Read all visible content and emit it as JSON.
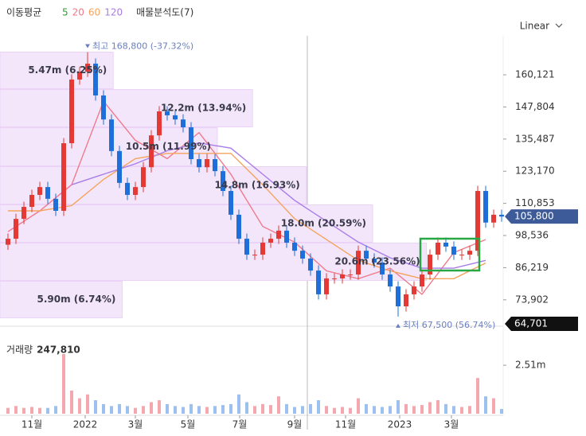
{
  "chart_data": {
    "type": "candlestick",
    "legend_title": "이동평균",
    "profile_title": "매물분석도(7)",
    "scale_mode": "Linear",
    "ylim": [
      63786,
      172010
    ],
    "yticks": [
      {
        "value": 73902,
        "label": "73,902"
      },
      {
        "value": 86219,
        "label": "86,219"
      },
      {
        "value": 98536,
        "label": "98,536"
      },
      {
        "value": 110853,
        "label": "110,853"
      },
      {
        "value": 123170,
        "label": "123,170"
      },
      {
        "value": 135487,
        "label": "135,487"
      },
      {
        "value": 147804,
        "label": "147,804"
      },
      {
        "value": 160121,
        "label": "160,121"
      }
    ],
    "xlim": [
      -1,
      62.2
    ],
    "xticks": [
      {
        "value": 3,
        "label": "11월"
      },
      {
        "value": 9.7,
        "label": "2022"
      },
      {
        "value": 16,
        "label": "3월"
      },
      {
        "value": 22.6,
        "label": "5월"
      },
      {
        "value": 29.1,
        "label": "7월"
      },
      {
        "value": 36,
        "label": "9월"
      },
      {
        "value": 42.4,
        "label": "11월"
      },
      {
        "value": 49.2,
        "label": "2023"
      },
      {
        "value": 55.7,
        "label": "3월"
      }
    ],
    "up_color": "#e53935",
    "down_color": "#1e6fd9",
    "open": [
      95000,
      97300,
      104900,
      109500,
      114100,
      117100,
      112600,
      108000,
      133900,
      158300,
      161300,
      164400,
      152200,
      143000,
      130900,
      118700,
      114100,
      117100,
      124700,
      136900,
      146100,
      144600,
      143000,
      140000,
      127800,
      124700,
      127800,
      123200,
      115600,
      106500,
      97300,
      91200,
      91200,
      95800,
      97300,
      100400,
      95800,
      92700,
      89700,
      85100,
      76000,
      82100,
      82100,
      83600,
      83600,
      92700,
      89700,
      88200,
      83600,
      79000,
      71400,
      76000,
      79000,
      83600,
      91200,
      95800,
      94300,
      91200,
      91200,
      92700,
      115600,
      103500,
      106500
    ],
    "high": [
      99300,
      106900,
      111500,
      116100,
      119100,
      119100,
      114600,
      135900,
      160300,
      163300,
      168800,
      166400,
      154200,
      145000,
      132900,
      120700,
      119100,
      126700,
      138900,
      148100,
      148100,
      146600,
      145000,
      142000,
      129800,
      129800,
      129800,
      125200,
      117600,
      108500,
      99300,
      93200,
      97800,
      99300,
      102400,
      102400,
      97800,
      94700,
      91700,
      87100,
      84100,
      84100,
      85600,
      85600,
      94700,
      94700,
      91700,
      90200,
      85600,
      81000,
      78000,
      81000,
      85600,
      93200,
      97800,
      97800,
      96300,
      93200,
      94700,
      117600,
      117600,
      108500,
      108500
    ],
    "low": [
      93000,
      95300,
      102900,
      107500,
      112100,
      110600,
      106000,
      106000,
      131900,
      156300,
      159300,
      150200,
      141000,
      128900,
      116700,
      112100,
      112100,
      115100,
      122700,
      134900,
      142600,
      141000,
      138000,
      125800,
      122700,
      122700,
      121200,
      113600,
      104500,
      95300,
      89200,
      89200,
      89200,
      93800,
      95300,
      93800,
      90700,
      87700,
      83100,
      74000,
      74000,
      80100,
      80100,
      81600,
      81600,
      87700,
      86200,
      81600,
      77000,
      67500,
      69400,
      74000,
      77000,
      81600,
      89200,
      92300,
      89200,
      89200,
      89200,
      90700,
      101500,
      101500,
      103800
    ],
    "close": [
      97300,
      104900,
      109500,
      114100,
      117100,
      112600,
      108000,
      133900,
      158300,
      161300,
      164400,
      152200,
      143000,
      130900,
      118700,
      114100,
      117100,
      124700,
      136900,
      146100,
      144600,
      143000,
      140000,
      127800,
      124700,
      127800,
      123200,
      115600,
      106500,
      97300,
      91200,
      91200,
      95800,
      97300,
      100400,
      95800,
      92700,
      89700,
      85100,
      76000,
      82100,
      82100,
      83600,
      83600,
      92700,
      89700,
      88200,
      83600,
      79000,
      71400,
      76000,
      79000,
      83600,
      91200,
      95800,
      94300,
      91200,
      91200,
      92700,
      115600,
      103500,
      106500,
      105800
    ],
    "last_close_label": "105,800",
    "low_tag": {
      "value": 64701,
      "label": "64,701"
    },
    "annotations": [
      {
        "text": "최고 168,800 (-37.32%)",
        "index": 10,
        "value": 168800,
        "kind": "high"
      },
      {
        "text": "최저 67,500 (56.74%)",
        "index": 49,
        "value": 67500,
        "kind": "low"
      }
    ],
    "ma": {
      "index": [
        0,
        4,
        8,
        12,
        16,
        20,
        24,
        28,
        32,
        36,
        40,
        44,
        48,
        52,
        56,
        60
      ],
      "series": [
        {
          "name": "5",
          "color": "#2e9d2e",
          "values": []
        },
        {
          "name": "20",
          "color": "#f07a8a",
          "values": [
            100000,
            108000,
            118000,
            150000,
            135000,
            128000,
            138000,
            122000,
            102000,
            96000,
            85000,
            82000,
            86000,
            76000,
            92000,
            97000
          ]
        },
        {
          "name": "60",
          "color": "#f5a35c",
          "values": [
            108000,
            108000,
            110000,
            120000,
            128000,
            130000,
            130000,
            130000,
            118000,
            105000,
            97000,
            89000,
            85000,
            82000,
            82000,
            88000
          ]
        },
        {
          "name": "120",
          "color": "#a87ce8",
          "values": [
            null,
            null,
            118000,
            122000,
            126000,
            131000,
            134000,
            132000,
            122000,
            112000,
            104000,
            96000,
            90000,
            86000,
            86000,
            89000
          ]
        }
      ]
    },
    "volume_profile": {
      "bins": [
        168960,
        154630,
        140000,
        125060,
        110430,
        95790,
        81160,
        66830
      ],
      "values": [
        5.47,
        12.2,
        10.5,
        14.8,
        18.0,
        20.6,
        5.9
      ],
      "value_labels": [
        "5.47m (6.25%)",
        "12.2m (13.94%)",
        "10.5m (11.99%)",
        "14.8m (16.93%)",
        "18.0m (20.59%)",
        "20.6m (23.56%)",
        "5.90m (6.74%)"
      ],
      "color": "#f3e6fb"
    },
    "volume": {
      "title": "거래량",
      "last_value_label": "247,810",
      "ylim": [
        0,
        3.79
      ],
      "yticks": [
        {
          "value": 2.51,
          "label": "2.51m"
        }
      ],
      "values": [
        0.3,
        0.4,
        0.3,
        0.35,
        0.3,
        0.3,
        0.4,
        3.09,
        1.2,
        0.8,
        1.0,
        0.7,
        0.5,
        0.4,
        0.5,
        0.4,
        0.3,
        0.4,
        0.6,
        0.7,
        0.5,
        0.4,
        0.35,
        0.5,
        0.4,
        0.35,
        0.4,
        0.45,
        0.5,
        1.0,
        0.6,
        0.4,
        0.5,
        0.45,
        0.9,
        0.5,
        0.35,
        0.4,
        0.5,
        0.7,
        0.4,
        0.3,
        0.35,
        0.3,
        0.8,
        0.5,
        0.4,
        0.35,
        0.4,
        0.7,
        0.5,
        0.4,
        0.45,
        0.6,
        0.7,
        0.5,
        0.4,
        0.35,
        0.4,
        1.85,
        0.9,
        0.8,
        0.24781
      ]
    }
  }
}
